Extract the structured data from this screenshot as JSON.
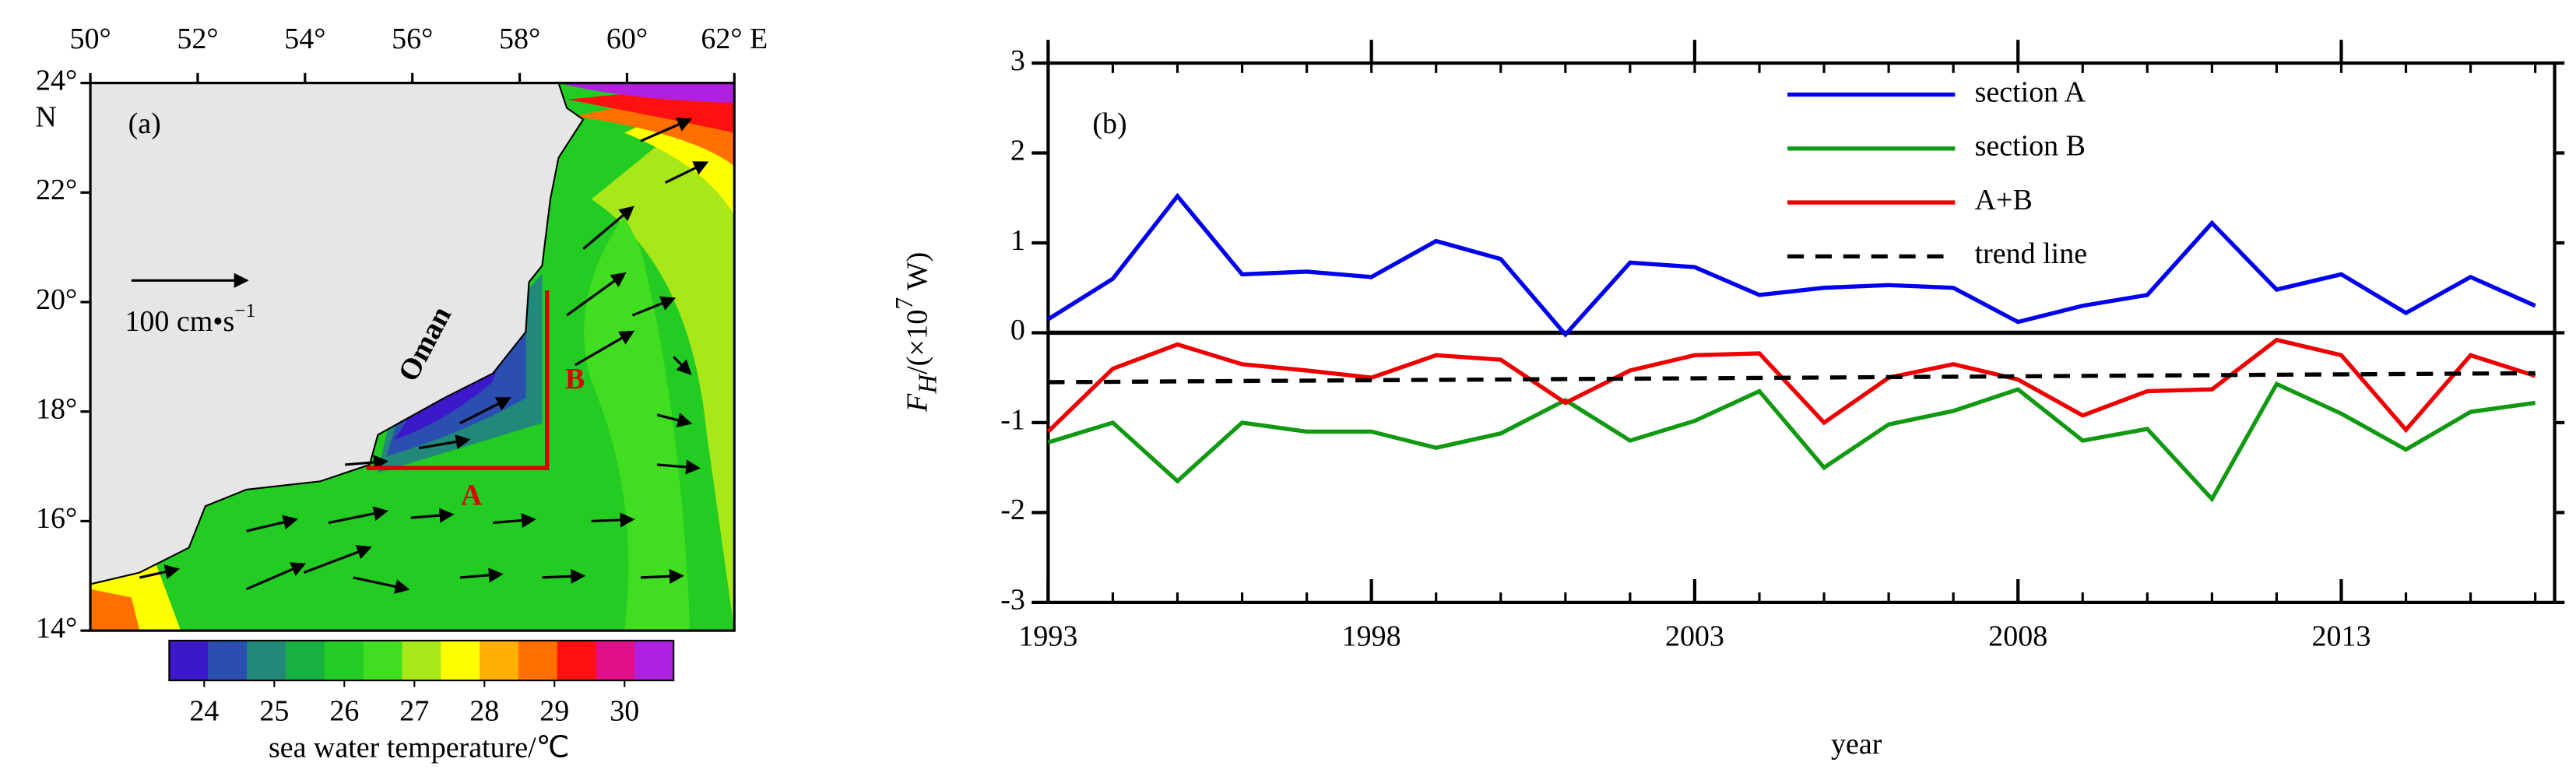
{
  "chart_data": [
    {
      "type": "map",
      "panel_label": "(a)",
      "xlim": [
        50,
        62
      ],
      "ylim": [
        14,
        24
      ],
      "xticks": [
        {
          "value": 50,
          "label": "50°"
        },
        {
          "value": 52,
          "label": "52°"
        },
        {
          "value": 54,
          "label": "54°"
        },
        {
          "value": 56,
          "label": "56°"
        },
        {
          "value": 58,
          "label": "58°"
        },
        {
          "value": 60,
          "label": "60°"
        },
        {
          "value": 62,
          "label": "62° E"
        }
      ],
      "yticks": [
        {
          "value": 24,
          "label": "24°"
        },
        {
          "value": 22,
          "label": "22°"
        },
        {
          "value": 20,
          "label": "20°"
        },
        {
          "value": 18,
          "label": "18°"
        },
        {
          "value": 16,
          "label": "16°"
        },
        {
          "value": 14,
          "label": "14°"
        }
      ],
      "lat_hemisphere": "N",
      "land_label": "Oman",
      "section_labels": [
        "A",
        "B"
      ],
      "scale_label": "100 cm•s",
      "scale_exp": "−1",
      "colorbar": {
        "label": "sea water temperature/℃",
        "clim": [
          23.5,
          30.7
        ],
        "ticks": [
          24,
          25,
          26,
          27,
          28,
          29,
          30
        ],
        "colors": [
          "#3b18c9",
          "#2a4fb0",
          "#20897a",
          "#18b040",
          "#22cc22",
          "#40dd20",
          "#a8e818",
          "#ffff00",
          "#ffb000",
          "#ff7000",
          "#ff1010",
          "#e0108a",
          "#b020e0"
        ]
      }
    },
    {
      "type": "line",
      "panel_label": "(b)",
      "xlabel": "year",
      "ylabel": {
        "main": "F",
        "sub": "H",
        "unit": "/(×10",
        "exp": "7",
        "tail": " W)"
      },
      "x": [
        1993,
        1994,
        1995,
        1996,
        1997,
        1998,
        1999,
        2000,
        2001,
        2002,
        2003,
        2004,
        2005,
        2006,
        2007,
        2008,
        2009,
        2010,
        2011,
        2012,
        2013,
        2014,
        2015,
        2016
      ],
      "xlim": [
        1993,
        2016.3
      ],
      "xticks": [
        1993,
        1998,
        2003,
        2008,
        2013
      ],
      "ylim": [
        -3,
        3
      ],
      "yticks": [
        -3,
        -2,
        -1,
        0,
        1,
        2,
        3
      ],
      "series": [
        {
          "name": "section A",
          "color": "#0000ee",
          "values": [
            0.15,
            0.6,
            1.52,
            0.65,
            0.68,
            0.62,
            1.02,
            0.82,
            -0.02,
            0.78,
            0.73,
            0.42,
            0.5,
            0.53,
            0.5,
            0.12,
            0.3,
            0.42,
            1.22,
            0.48,
            0.65,
            0.22,
            0.62,
            0.3
          ]
        },
        {
          "name": "section B",
          "color": "#119911",
          "values": [
            -1.22,
            -1.0,
            -1.65,
            -1.0,
            -1.1,
            -1.1,
            -1.28,
            -1.12,
            -0.75,
            -1.2,
            -0.98,
            -0.65,
            -1.5,
            -1.02,
            -0.87,
            -0.63,
            -1.2,
            -1.07,
            -1.85,
            -0.57,
            -0.9,
            -1.3,
            -0.88,
            -0.78
          ]
        },
        {
          "name": "A+B",
          "color": "#ee0000",
          "values": [
            -1.1,
            -0.4,
            -0.13,
            -0.35,
            -0.42,
            -0.5,
            -0.25,
            -0.3,
            -0.78,
            -0.42,
            -0.25,
            -0.23,
            -1.0,
            -0.5,
            -0.35,
            -0.52,
            -0.92,
            -0.65,
            -0.63,
            -0.08,
            -0.25,
            -1.08,
            -0.25,
            -0.48
          ]
        },
        {
          "name": "trend line",
          "color": "#000000",
          "dashed": true,
          "values": [
            -0.55,
            -0.546,
            -0.541,
            -0.537,
            -0.533,
            -0.528,
            -0.524,
            -0.52,
            -0.515,
            -0.511,
            -0.507,
            -0.502,
            -0.498,
            -0.493,
            -0.489,
            -0.485,
            -0.48,
            -0.476,
            -0.472,
            -0.467,
            -0.463,
            -0.459,
            -0.454,
            -0.45
          ]
        }
      ]
    }
  ]
}
